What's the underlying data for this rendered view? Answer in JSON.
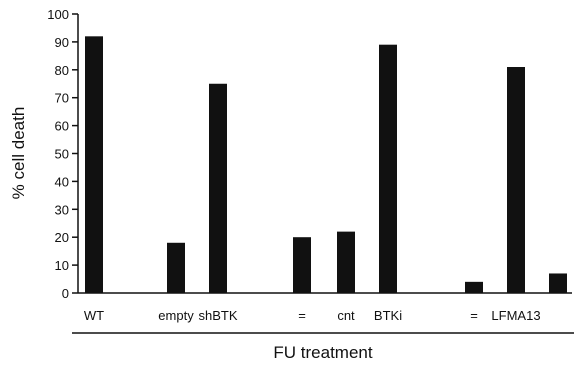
{
  "chart_data": {
    "type": "bar",
    "categories": [
      "WT",
      "",
      "empty",
      "shBTK",
      "",
      "=",
      "cnt",
      "BTKi",
      "",
      "=",
      "LFMA13",
      ""
    ],
    "values": [
      92,
      null,
      18,
      75,
      null,
      20,
      22,
      89,
      null,
      4,
      81,
      7
    ],
    "title": "",
    "xlabel": "FU treatment",
    "ylabel": "% cell death",
    "ylim": [
      0,
      100
    ],
    "yticks": [
      0,
      10,
      20,
      30,
      40,
      50,
      60,
      70,
      80,
      90,
      100
    ],
    "grid": false,
    "bar_color": "#111111"
  }
}
